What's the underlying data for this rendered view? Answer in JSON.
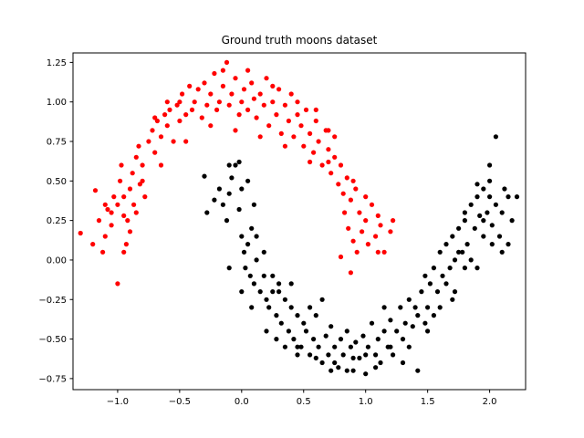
{
  "chart_data": {
    "type": "scatter",
    "title": "Ground truth moons dataset",
    "xlabel": "",
    "ylabel": "",
    "xlim": [
      -1.36,
      2.29
    ],
    "ylim": [
      -0.82,
      1.31
    ],
    "xticks": [
      -1.0,
      -0.5,
      0.0,
      0.5,
      1.0,
      1.5,
      2.0
    ],
    "xtick_labels": [
      "−1.0",
      "−0.5",
      "0.0",
      "0.5",
      "1.0",
      "1.5",
      "2.0"
    ],
    "yticks": [
      -0.75,
      -0.5,
      -0.25,
      0.0,
      0.25,
      0.5,
      0.75,
      1.0,
      1.25
    ],
    "ytick_labels": [
      "−0.75",
      "−0.50",
      "−0.25",
      "0.00",
      "0.25",
      "0.50",
      "0.75",
      "1.00",
      "1.25"
    ],
    "grid": false,
    "series": [
      {
        "color": "#ff0000",
        "points": [
          [
            -1.3,
            0.17
          ],
          [
            -1.18,
            0.44
          ],
          [
            -1.15,
            0.25
          ],
          [
            -1.12,
            0.05
          ],
          [
            -1.1,
            0.15
          ],
          [
            -1.08,
            0.32
          ],
          [
            -1.05,
            0.22
          ],
          [
            -1.03,
            0.4
          ],
          [
            -1.0,
            0.35
          ],
          [
            -0.98,
            0.5
          ],
          [
            -0.97,
            0.6
          ],
          [
            -0.95,
            0.28
          ],
          [
            -0.93,
            0.1
          ],
          [
            -0.9,
            0.45
          ],
          [
            -0.9,
            0.18
          ],
          [
            -0.88,
            0.55
          ],
          [
            -0.85,
            0.65
          ],
          [
            -0.85,
            0.3
          ],
          [
            -0.83,
            0.72
          ],
          [
            -0.8,
            0.6
          ],
          [
            -0.8,
            0.5
          ],
          [
            -0.78,
            0.4
          ],
          [
            -0.75,
            0.75
          ],
          [
            -0.72,
            0.82
          ],
          [
            -0.7,
            0.68
          ],
          [
            -0.68,
            0.88
          ],
          [
            -0.65,
            0.78
          ],
          [
            -0.62,
            0.92
          ],
          [
            -0.6,
            0.85
          ],
          [
            -0.58,
            0.95
          ],
          [
            -0.55,
            0.75
          ],
          [
            -0.52,
            0.98
          ],
          [
            -0.5,
            0.88
          ],
          [
            -0.48,
            1.05
          ],
          [
            -0.45,
            0.92
          ],
          [
            -0.42,
            1.1
          ],
          [
            -0.4,
            0.95
          ],
          [
            -0.38,
            1.0
          ],
          [
            -0.35,
            1.08
          ],
          [
            -0.32,
            0.9
          ],
          [
            -0.3,
            1.12
          ],
          [
            -0.28,
            0.98
          ],
          [
            -0.25,
            1.05
          ],
          [
            -0.22,
            1.18
          ],
          [
            -0.2,
            0.95
          ],
          [
            -0.18,
            1.0
          ],
          [
            -0.15,
            1.1
          ],
          [
            -0.12,
            1.25
          ],
          [
            -0.1,
            0.98
          ],
          [
            -0.08,
            1.05
          ],
          [
            -0.05,
            1.15
          ],
          [
            -0.02,
            0.92
          ],
          [
            0.0,
            1.0
          ],
          [
            0.02,
            1.08
          ],
          [
            0.05,
            0.95
          ],
          [
            0.08,
            1.12
          ],
          [
            0.1,
            1.02
          ],
          [
            0.12,
            0.9
          ],
          [
            0.15,
            1.05
          ],
          [
            0.18,
            0.98
          ],
          [
            0.2,
            1.15
          ],
          [
            0.22,
            0.85
          ],
          [
            0.25,
            1.0
          ],
          [
            0.28,
            0.92
          ],
          [
            0.3,
            1.08
          ],
          [
            0.32,
            0.8
          ],
          [
            0.35,
            0.98
          ],
          [
            0.38,
            0.88
          ],
          [
            0.4,
            1.05
          ],
          [
            0.42,
            0.78
          ],
          [
            0.45,
            0.92
          ],
          [
            0.48,
            0.85
          ],
          [
            0.5,
            0.72
          ],
          [
            0.52,
            0.95
          ],
          [
            0.55,
            0.8
          ],
          [
            0.58,
            0.68
          ],
          [
            0.6,
            0.88
          ],
          [
            0.62,
            0.75
          ],
          [
            0.65,
            0.6
          ],
          [
            0.68,
            0.82
          ],
          [
            0.7,
            0.7
          ],
          [
            0.72,
            0.55
          ],
          [
            0.75,
            0.65
          ],
          [
            0.78,
            0.48
          ],
          [
            0.8,
            0.6
          ],
          [
            0.82,
            0.42
          ],
          [
            0.83,
            0.3
          ],
          [
            0.85,
            0.52
          ],
          [
            0.86,
            0.2
          ],
          [
            0.88,
            0.38
          ],
          [
            0.9,
            0.12
          ],
          [
            0.92,
            0.45
          ],
          [
            0.93,
            0.05
          ],
          [
            0.95,
            0.3
          ],
          [
            0.97,
            0.18
          ],
          [
            1.0,
            0.25
          ],
          [
            1.02,
            0.1
          ],
          [
            1.05,
            0.35
          ],
          [
            1.08,
            0.15
          ],
          [
            1.1,
            0.28
          ],
          [
            1.12,
            0.22
          ],
          [
            1.15,
            0.05
          ],
          [
            1.2,
            0.18
          ],
          [
            1.22,
            0.25
          ],
          [
            -1.2,
            0.1
          ],
          [
            -1.0,
            -0.15
          ],
          [
            -0.95,
            0.05
          ],
          [
            -0.87,
            0.35
          ],
          [
            -0.7,
            0.9
          ],
          [
            -0.6,
            1.0
          ],
          [
            -0.5,
            1.0
          ],
          [
            -0.15,
            1.2
          ],
          [
            0.05,
            1.2
          ],
          [
            0.25,
            1.1
          ],
          [
            0.45,
            1.0
          ],
          [
            0.6,
            0.95
          ],
          [
            0.7,
            0.82
          ],
          [
            0.75,
            0.78
          ],
          [
            0.9,
            0.5
          ],
          [
            1.0,
            0.4
          ],
          [
            1.1,
            0.05
          ],
          [
            0.88,
            -0.08
          ],
          [
            0.8,
            0.02
          ],
          [
            0.7,
            0.62
          ],
          [
            0.55,
            0.62
          ],
          [
            0.35,
            0.72
          ],
          [
            0.15,
            0.78
          ],
          [
            -0.05,
            0.82
          ],
          [
            -0.25,
            0.85
          ],
          [
            -0.45,
            0.75
          ],
          [
            -0.65,
            0.6
          ],
          [
            -0.82,
            0.48
          ],
          [
            -0.95,
            0.4
          ],
          [
            -1.05,
            0.3
          ],
          [
            -1.1,
            0.35
          ],
          [
            -0.92,
            0.25
          ]
        ]
      },
      {
        "color": "#000000",
        "points": [
          [
            -0.3,
            0.53
          ],
          [
            -0.18,
            0.45
          ],
          [
            -0.15,
            0.35
          ],
          [
            -0.12,
            0.25
          ],
          [
            -0.1,
            0.42
          ],
          [
            -0.08,
            0.52
          ],
          [
            -0.05,
            0.6
          ],
          [
            -0.02,
            0.32
          ],
          [
            0.0,
            0.15
          ],
          [
            0.0,
            0.45
          ],
          [
            0.02,
            0.05
          ],
          [
            0.03,
            -0.05
          ],
          [
            0.05,
            0.1
          ],
          [
            0.07,
            -0.1
          ],
          [
            0.08,
            0.2
          ],
          [
            0.1,
            -0.15
          ],
          [
            0.12,
            0.0
          ],
          [
            0.15,
            -0.2
          ],
          [
            0.18,
            -0.1
          ],
          [
            0.2,
            -0.25
          ],
          [
            0.22,
            -0.3
          ],
          [
            0.25,
            -0.2
          ],
          [
            0.28,
            -0.35
          ],
          [
            0.3,
            -0.15
          ],
          [
            0.32,
            -0.4
          ],
          [
            0.35,
            -0.25
          ],
          [
            0.38,
            -0.45
          ],
          [
            0.4,
            -0.3
          ],
          [
            0.42,
            -0.5
          ],
          [
            0.45,
            -0.35
          ],
          [
            0.48,
            -0.55
          ],
          [
            0.5,
            -0.4
          ],
          [
            0.52,
            -0.45
          ],
          [
            0.55,
            -0.6
          ],
          [
            0.58,
            -0.5
          ],
          [
            0.6,
            -0.35
          ],
          [
            0.62,
            -0.55
          ],
          [
            0.65,
            -0.65
          ],
          [
            0.68,
            -0.48
          ],
          [
            0.7,
            -0.6
          ],
          [
            0.72,
            -0.42
          ],
          [
            0.75,
            -0.55
          ],
          [
            0.78,
            -0.68
          ],
          [
            0.8,
            -0.5
          ],
          [
            0.82,
            -0.6
          ],
          [
            0.85,
            -0.45
          ],
          [
            0.88,
            -0.55
          ],
          [
            0.9,
            -0.7
          ],
          [
            0.92,
            -0.52
          ],
          [
            0.95,
            -0.62
          ],
          [
            0.98,
            -0.48
          ],
          [
            1.0,
            -0.72
          ],
          [
            1.02,
            -0.55
          ],
          [
            1.05,
            -0.4
          ],
          [
            1.08,
            -0.6
          ],
          [
            1.1,
            -0.5
          ],
          [
            1.12,
            -0.65
          ],
          [
            1.15,
            -0.45
          ],
          [
            1.18,
            -0.55
          ],
          [
            1.2,
            -0.38
          ],
          [
            1.22,
            -0.6
          ],
          [
            1.25,
            -0.45
          ],
          [
            1.28,
            -0.3
          ],
          [
            1.3,
            -0.5
          ],
          [
            1.32,
            -0.4
          ],
          [
            1.35,
            -0.25
          ],
          [
            1.38,
            -0.42
          ],
          [
            1.4,
            -0.3
          ],
          [
            1.42,
            -0.35
          ],
          [
            1.45,
            -0.2
          ],
          [
            1.48,
            -0.1
          ],
          [
            1.5,
            -0.3
          ],
          [
            1.52,
            -0.15
          ],
          [
            1.55,
            -0.05
          ],
          [
            1.58,
            -0.2
          ],
          [
            1.6,
            0.05
          ],
          [
            1.62,
            -0.1
          ],
          [
            1.65,
            0.1
          ],
          [
            1.68,
            -0.05
          ],
          [
            1.7,
            0.15
          ],
          [
            1.72,
            0.0
          ],
          [
            1.75,
            0.2
          ],
          [
            1.78,
            0.05
          ],
          [
            1.8,
            0.25
          ],
          [
            1.82,
            0.1
          ],
          [
            1.85,
            0.35
          ],
          [
            1.88,
            0.2
          ],
          [
            1.9,
            0.4
          ],
          [
            1.92,
            0.28
          ],
          [
            1.95,
            0.45
          ],
          [
            1.98,
            0.3
          ],
          [
            2.0,
            0.5
          ],
          [
            2.02,
            0.22
          ],
          [
            2.05,
            0.35
          ],
          [
            2.08,
            0.15
          ],
          [
            2.1,
            0.3
          ],
          [
            2.12,
            0.45
          ],
          [
            2.15,
            0.1
          ],
          [
            2.18,
            0.25
          ],
          [
            2.22,
            0.4
          ],
          [
            2.05,
            0.78
          ],
          [
            2.0,
            0.6
          ],
          [
            1.95,
            0.15
          ],
          [
            1.9,
            -0.05
          ],
          [
            1.85,
            0.0
          ],
          [
            -0.28,
            0.3
          ],
          [
            -0.22,
            0.38
          ],
          [
            -0.1,
            0.6
          ],
          [
            -0.02,
            0.62
          ],
          [
            0.05,
            0.5
          ],
          [
            0.1,
            0.35
          ],
          [
            0.12,
            0.15
          ],
          [
            0.18,
            0.05
          ],
          [
            0.25,
            -0.1
          ],
          [
            0.3,
            -0.2
          ],
          [
            0.4,
            -0.15
          ],
          [
            0.45,
            -0.55
          ],
          [
            0.55,
            -0.3
          ],
          [
            0.65,
            -0.25
          ],
          [
            0.72,
            -0.7
          ],
          [
            0.85,
            -0.7
          ],
          [
            1.0,
            -0.6
          ],
          [
            1.15,
            -0.3
          ],
          [
            1.3,
            -0.65
          ],
          [
            1.42,
            -0.7
          ],
          [
            1.5,
            -0.45
          ],
          [
            1.6,
            -0.3
          ],
          [
            1.7,
            -0.25
          ],
          [
            1.75,
            0.05
          ],
          [
            1.8,
            0.3
          ],
          [
            1.9,
            0.48
          ],
          [
            2.0,
            0.4
          ],
          [
            2.1,
            0.05
          ],
          [
            2.15,
            0.4
          ],
          [
            1.95,
            0.25
          ],
          [
            2.02,
            0.1
          ],
          [
            -0.1,
            -0.05
          ],
          [
            0.0,
            -0.2
          ],
          [
            0.08,
            -0.3
          ],
          [
            0.2,
            -0.45
          ],
          [
            0.28,
            -0.5
          ],
          [
            0.35,
            -0.55
          ],
          [
            0.45,
            -0.6
          ],
          [
            0.6,
            -0.62
          ],
          [
            0.75,
            -0.65
          ],
          [
            0.9,
            -0.62
          ],
          [
            1.08,
            -0.68
          ],
          [
            1.2,
            -0.55
          ],
          [
            1.35,
            -0.55
          ],
          [
            1.48,
            -0.4
          ],
          [
            1.55,
            -0.35
          ],
          [
            1.65,
            -0.15
          ],
          [
            1.72,
            -0.2
          ],
          [
            1.8,
            -0.05
          ]
        ]
      }
    ]
  }
}
